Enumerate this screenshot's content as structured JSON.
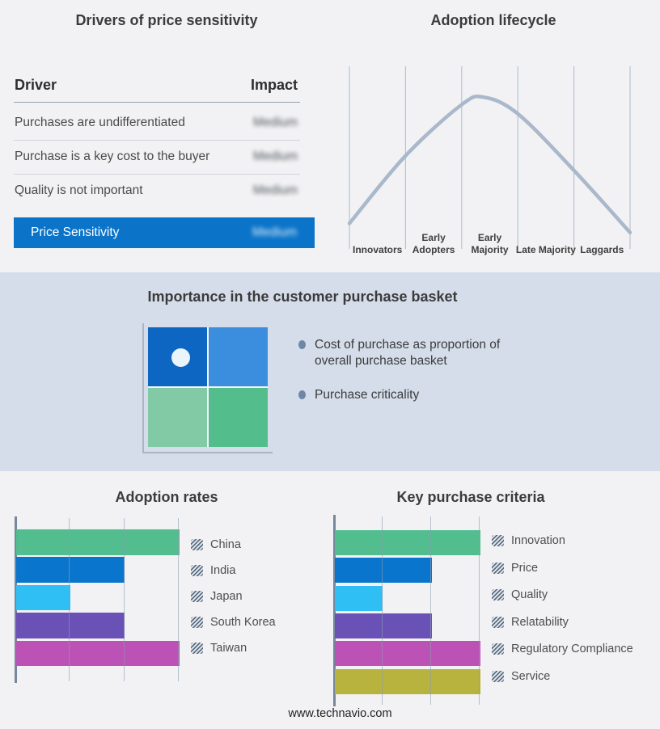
{
  "footer": {
    "url": "www.technavio.com"
  },
  "colors": {
    "page_bg": "#f2f2f4",
    "band_bg": "#d4dde9",
    "accent_blue": "#0b74c9",
    "curve": "#a9b8ca",
    "gridline": "#b3bfce"
  },
  "basket_panel": {
    "title": "Importance in the customer purchase basket",
    "bullets": [
      "Cost of purchase as proportion of overall purchase basket",
      "Purchase criticality"
    ],
    "quadrant_colors": [
      "#0c66c2",
      "#3b8ede",
      "#82c9a5",
      "#53bd8c"
    ]
  },
  "chart_data": [
    {
      "id": "drivers_of_price_sensitivity",
      "type": "table",
      "title": "Drivers of price sensitivity",
      "columns": [
        "Driver",
        "Impact"
      ],
      "rows": [
        [
          "Purchases are undifferentiated",
          "Medium"
        ],
        [
          "Purchase is a key cost to the buyer",
          "Medium"
        ],
        [
          "Quality is not important",
          "Medium"
        ],
        [
          "Price Sensitivity",
          "Medium"
        ]
      ],
      "note": "Impact values are shown blurred (redacted); last row is highlighted in accent blue",
      "highlight_color": "#0b74c9"
    },
    {
      "id": "adoption_lifecycle",
      "type": "line",
      "title": "Adoption lifecycle",
      "x_categories": [
        "Innovators",
        "Early Adopters",
        "Early Majority",
        "Late Majority",
        "Laggards"
      ],
      "curve_shape": "bell curve peaking over Early Majority",
      "points_pct": [
        [
          0,
          14
        ],
        [
          20,
          51
        ],
        [
          40,
          79
        ],
        [
          48,
          83
        ],
        [
          60,
          74
        ],
        [
          80,
          43
        ],
        [
          100,
          9
        ]
      ],
      "line_color": "#a9b8ca",
      "grid": "vertical category separators only, no y axis"
    },
    {
      "id": "adoption_rates",
      "type": "bar",
      "orientation": "horizontal",
      "title": "Adoption rates",
      "categories": [
        "China",
        "India",
        "Japan",
        "South Korea",
        "Taiwan"
      ],
      "values": [
        100,
        66.7,
        33.3,
        66.7,
        100
      ],
      "xlim": [
        0,
        100
      ],
      "gridlines_pct": [
        0,
        33.3,
        66.7,
        100
      ],
      "colors": [
        "#52bd8f",
        "#0a75cc",
        "#30bff5",
        "#6a51b5",
        "#bc52b5"
      ],
      "legend_position": "right",
      "tick_labels": "none (unlabeled axis)"
    },
    {
      "id": "key_purchase_criteria",
      "type": "bar",
      "orientation": "horizontal",
      "title": "Key purchase criteria",
      "categories": [
        "Innovation",
        "Price",
        "Quality",
        "Relatability",
        "Regulatory Compliance",
        "Service"
      ],
      "values": [
        100,
        66.7,
        33.3,
        66.7,
        100,
        100
      ],
      "xlim": [
        0,
        100
      ],
      "gridlines_pct": [
        0,
        33.3,
        66.7,
        100
      ],
      "colors": [
        "#52bd8f",
        "#0a75cc",
        "#30bff5",
        "#6a51b5",
        "#bc52b5",
        "#b7b33e"
      ],
      "legend_position": "right",
      "tick_labels": "none (unlabeled axis)"
    }
  ]
}
